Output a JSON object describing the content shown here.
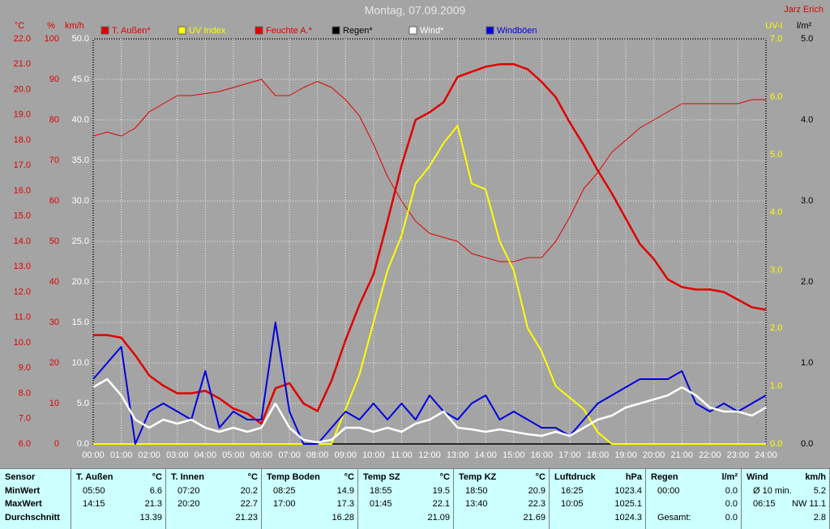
{
  "chart_data": {
    "type": "line",
    "title": "Montag, 07.09.2009",
    "author": "Jarz Erich",
    "grid": true,
    "x": [
      0,
      0.5,
      1,
      1.5,
      2,
      2.5,
      3,
      3.5,
      4,
      4.5,
      5,
      5.5,
      6,
      6.5,
      7,
      7.5,
      8,
      8.5,
      9,
      9.5,
      10,
      10.5,
      11,
      11.5,
      12,
      12.5,
      13,
      13.5,
      14,
      14.5,
      15,
      15.5,
      16,
      16.5,
      17,
      17.5,
      18,
      18.5,
      19,
      19.5,
      20,
      20.5,
      21,
      21.5,
      22,
      22.5,
      23,
      23.5,
      24
    ],
    "xlim": [
      0,
      24
    ],
    "xticks": [
      {
        "value": 0,
        "label": "00:00"
      },
      {
        "value": 1,
        "label": "01:00"
      },
      {
        "value": 2,
        "label": "02:00"
      },
      {
        "value": 3,
        "label": "03:00"
      },
      {
        "value": 4,
        "label": "04:00"
      },
      {
        "value": 5,
        "label": "05:00"
      },
      {
        "value": 6,
        "label": "06:00"
      },
      {
        "value": 7,
        "label": "07:00"
      },
      {
        "value": 8,
        "label": "08:00"
      },
      {
        "value": 9,
        "label": "09:00"
      },
      {
        "value": 10,
        "label": "10:00"
      },
      {
        "value": 11,
        "label": "11:00"
      },
      {
        "value": 12,
        "label": "12:00"
      },
      {
        "value": 13,
        "label": "13:00"
      },
      {
        "value": 14,
        "label": "14:00"
      },
      {
        "value": 15,
        "label": "15:00"
      },
      {
        "value": 16,
        "label": "16:00"
      },
      {
        "value": 17,
        "label": "17:00"
      },
      {
        "value": 18,
        "label": "18:00"
      },
      {
        "value": 19,
        "label": "19:00"
      },
      {
        "value": 20,
        "label": "20:00"
      },
      {
        "value": 21,
        "label": "21:00"
      },
      {
        "value": 22,
        "label": "22:00"
      },
      {
        "value": 23,
        "label": "23:00"
      },
      {
        "value": 24,
        "label": "24:00"
      }
    ],
    "axes": [
      {
        "label": "°C",
        "color": "#e00000",
        "lim": [
          6,
          22
        ],
        "ticks": [
          {
            "value": 6,
            "label": "6.0"
          },
          {
            "value": 7,
            "label": "7.0"
          },
          {
            "value": 8,
            "label": "8.0"
          },
          {
            "value": 9,
            "label": "9.0"
          },
          {
            "value": 10,
            "label": "10.0"
          },
          {
            "value": 11,
            "label": "11.0"
          },
          {
            "value": 12,
            "label": "12.0"
          },
          {
            "value": 13,
            "label": "13.0"
          },
          {
            "value": 14,
            "label": "14.0"
          },
          {
            "value": 15,
            "label": "15.0"
          },
          {
            "value": 16,
            "label": "16.0"
          },
          {
            "value": 17,
            "label": "17.0"
          },
          {
            "value": 18,
            "label": "18.0"
          },
          {
            "value": 19,
            "label": "19.0"
          },
          {
            "value": 20,
            "label": "20.0"
          },
          {
            "value": 21,
            "label": "21.0"
          },
          {
            "value": 22,
            "label": "22.0"
          }
        ]
      },
      {
        "label": "%",
        "color": "#e00000",
        "lim": [
          0,
          100
        ],
        "ticks": [
          0,
          10,
          20,
          30,
          40,
          50,
          60,
          70,
          80,
          90,
          100
        ]
      },
      {
        "label": "km/h",
        "color": "#ffffff",
        "lim": [
          0,
          50
        ],
        "ticks": [
          {
            "value": 0,
            "label": "0.0"
          },
          {
            "value": 5,
            "label": "5.0"
          },
          {
            "value": 10,
            "label": "10.0"
          },
          {
            "value": 15,
            "label": "15.0"
          },
          {
            "value": 20,
            "label": "20.0"
          },
          {
            "value": 25,
            "label": "25.0"
          },
          {
            "value": 30,
            "label": "30.0"
          },
          {
            "value": 35,
            "label": "35.0"
          },
          {
            "value": 40,
            "label": "40.0"
          },
          {
            "value": 45,
            "label": "45.0"
          },
          {
            "value": 50,
            "label": "50.0"
          }
        ]
      },
      {
        "label": "UV-I",
        "color": "#ffff00",
        "lim": [
          0,
          7
        ],
        "ticks": [
          {
            "value": 0,
            "label": "0.0"
          },
          {
            "value": 1,
            "label": "1.0"
          },
          {
            "value": 2,
            "label": "2.0"
          },
          {
            "value": 3,
            "label": "3.0"
          },
          {
            "value": 4,
            "label": "4.0"
          },
          {
            "value": 5,
            "label": "5.0"
          },
          {
            "value": 6,
            "label": "6.0"
          },
          {
            "value": 7,
            "label": "7.0"
          }
        ]
      },
      {
        "label": "l/m²",
        "color": "#000000",
        "lim": [
          0,
          5
        ],
        "ticks": [
          {
            "value": 0,
            "label": "0.0"
          },
          {
            "value": 1,
            "label": "1.0"
          },
          {
            "value": 2,
            "label": "2.0"
          },
          {
            "value": 3,
            "label": "3.0"
          },
          {
            "value": 4,
            "label": "4.0"
          },
          {
            "value": 5,
            "label": "5.0"
          }
        ]
      }
    ],
    "series": [
      {
        "name": "T. Außen*",
        "color": "#e00000",
        "axis": 0,
        "values": [
          10.3,
          10.3,
          10.2,
          9.5,
          8.7,
          8.3,
          8.0,
          8.0,
          8.1,
          7.8,
          7.4,
          7.2,
          6.8,
          8.2,
          8.4,
          7.6,
          7.3,
          8.5,
          10.1,
          11.5,
          12.7,
          14.8,
          17.0,
          18.8,
          19.1,
          19.5,
          20.5,
          20.7,
          20.9,
          21.0,
          21.0,
          20.8,
          20.3,
          19.7,
          18.7,
          17.8,
          16.8,
          15.9,
          14.9,
          13.9,
          13.3,
          12.5,
          12.2,
          12.1,
          12.1,
          12.0,
          11.7,
          11.4,
          11.3
        ]
      },
      {
        "name": "UV Index",
        "color": "#ffff00",
        "axis": 3,
        "values": [
          0,
          0,
          0,
          0,
          0,
          0,
          0,
          0,
          0,
          0,
          0,
          0,
          0,
          0,
          0,
          0,
          0,
          0,
          0.6,
          1.2,
          2.1,
          3.0,
          3.6,
          4.5,
          4.8,
          5.2,
          5.5,
          4.5,
          4.4,
          3.5,
          3.0,
          2.0,
          1.6,
          1.0,
          0.8,
          0.6,
          0.2,
          0,
          0,
          0,
          0,
          0,
          0,
          0,
          0,
          0,
          0,
          0,
          0
        ]
      },
      {
        "name": "Feuchte A.*",
        "color": "#e00000",
        "axis": 1,
        "values": [
          76,
          77,
          76,
          78,
          82,
          84,
          86,
          86,
          86.5,
          87,
          88,
          89,
          90,
          86,
          86,
          88,
          89.5,
          88,
          85,
          81,
          74,
          66,
          60,
          55,
          52,
          51,
          50,
          47,
          46,
          45,
          45,
          46,
          46,
          50,
          56,
          63,
          67,
          72,
          75,
          78,
          80,
          82,
          84,
          84,
          84,
          84,
          84,
          85,
          85
        ]
      },
      {
        "name": "Regen*",
        "color": "#000000",
        "axis": 4,
        "values": [
          0,
          0,
          0,
          0,
          0,
          0,
          0,
          0,
          0,
          0,
          0,
          0,
          0,
          0,
          0,
          0,
          0,
          0,
          0,
          0,
          0,
          0,
          0,
          0,
          0,
          0,
          0,
          0,
          0,
          0,
          0,
          0,
          0,
          0,
          0,
          0,
          0,
          0,
          0,
          0,
          0,
          0,
          0,
          0,
          0,
          0,
          0,
          0,
          0
        ]
      },
      {
        "name": "Wind*",
        "color": "#ffffff",
        "axis": 2,
        "values": [
          7,
          8,
          6,
          3,
          2,
          3,
          2.5,
          3,
          2,
          1.5,
          2,
          1.5,
          2,
          5,
          2,
          0.5,
          0.2,
          0.5,
          2,
          2,
          1.5,
          2,
          1.5,
          2.5,
          3,
          4,
          2,
          1.8,
          1.5,
          1.8,
          1.5,
          1.2,
          1,
          1.5,
          1,
          2,
          3,
          3.5,
          4.5,
          5,
          5.5,
          6,
          7,
          6,
          4.5,
          4,
          4,
          3.5,
          4.5
        ]
      },
      {
        "name": "Windböen",
        "color": "#0000e0",
        "axis": 2,
        "values": [
          8,
          10,
          12,
          0,
          4,
          5,
          4,
          3,
          9,
          2,
          4,
          3,
          3,
          15,
          4,
          0,
          0,
          2,
          4,
          3,
          5,
          3,
          5,
          3,
          6,
          4,
          3,
          5,
          6,
          3,
          4,
          3,
          2,
          2,
          1,
          3,
          5,
          6,
          7,
          8,
          8,
          8,
          9,
          5,
          4,
          5,
          4,
          5,
          6
        ]
      }
    ]
  },
  "table": {
    "label_column": {
      "header": "Sensor",
      "rows": [
        "MinWert",
        "MaxWert",
        "Durchschnitt"
      ]
    },
    "columns": [
      {
        "name": "T. Außen",
        "unit": "°C",
        "rows": [
          {
            "time": "05:50",
            "value": "6.6"
          },
          {
            "time": "14:15",
            "value": "21.3"
          },
          {
            "value": "13.39"
          }
        ]
      },
      {
        "name": "T. Innen",
        "unit": "°C",
        "rows": [
          {
            "time": "07:20",
            "value": "20.2"
          },
          {
            "time": "20:20",
            "value": "22.7"
          },
          {
            "value": "21.23"
          }
        ]
      },
      {
        "name": "Temp Boden",
        "unit": "°C",
        "rows": [
          {
            "time": "08:25",
            "value": "14.9"
          },
          {
            "time": "17:00",
            "value": "17.3"
          },
          {
            "value": "16.28"
          }
        ]
      },
      {
        "name": "Temp SZ",
        "unit": "°C",
        "rows": [
          {
            "time": "18:55",
            "value": "19.5"
          },
          {
            "time": "01:45",
            "value": "22.1"
          },
          {
            "value": "21.09"
          }
        ]
      },
      {
        "name": "Temp KZ",
        "unit": "°C",
        "rows": [
          {
            "time": "18:50",
            "value": "20.9"
          },
          {
            "time": "13:40",
            "value": "22.3"
          },
          {
            "value": "21.69"
          }
        ]
      },
      {
        "name": "Luftdruck",
        "unit": "hPa",
        "rows": [
          {
            "time": "16:25",
            "value": "1023.4"
          },
          {
            "time": "10:05",
            "value": "1025.1"
          },
          {
            "value": "1024.3"
          }
        ]
      },
      {
        "name": "Regen",
        "unit": "l/m²",
        "rows": [
          {
            "time": "00:00",
            "value": "0.0"
          },
          {
            "value": "0.0"
          },
          {
            "time": "Gesamt:",
            "value": "0.0"
          }
        ]
      },
      {
        "name": "Wind",
        "unit": "km/h",
        "rows": [
          {
            "time": "Ø 10 min.",
            "value": "5.2"
          },
          {
            "time": "06:15",
            "value": "NW 11.1"
          },
          {
            "value": "2.8"
          }
        ]
      }
    ]
  }
}
